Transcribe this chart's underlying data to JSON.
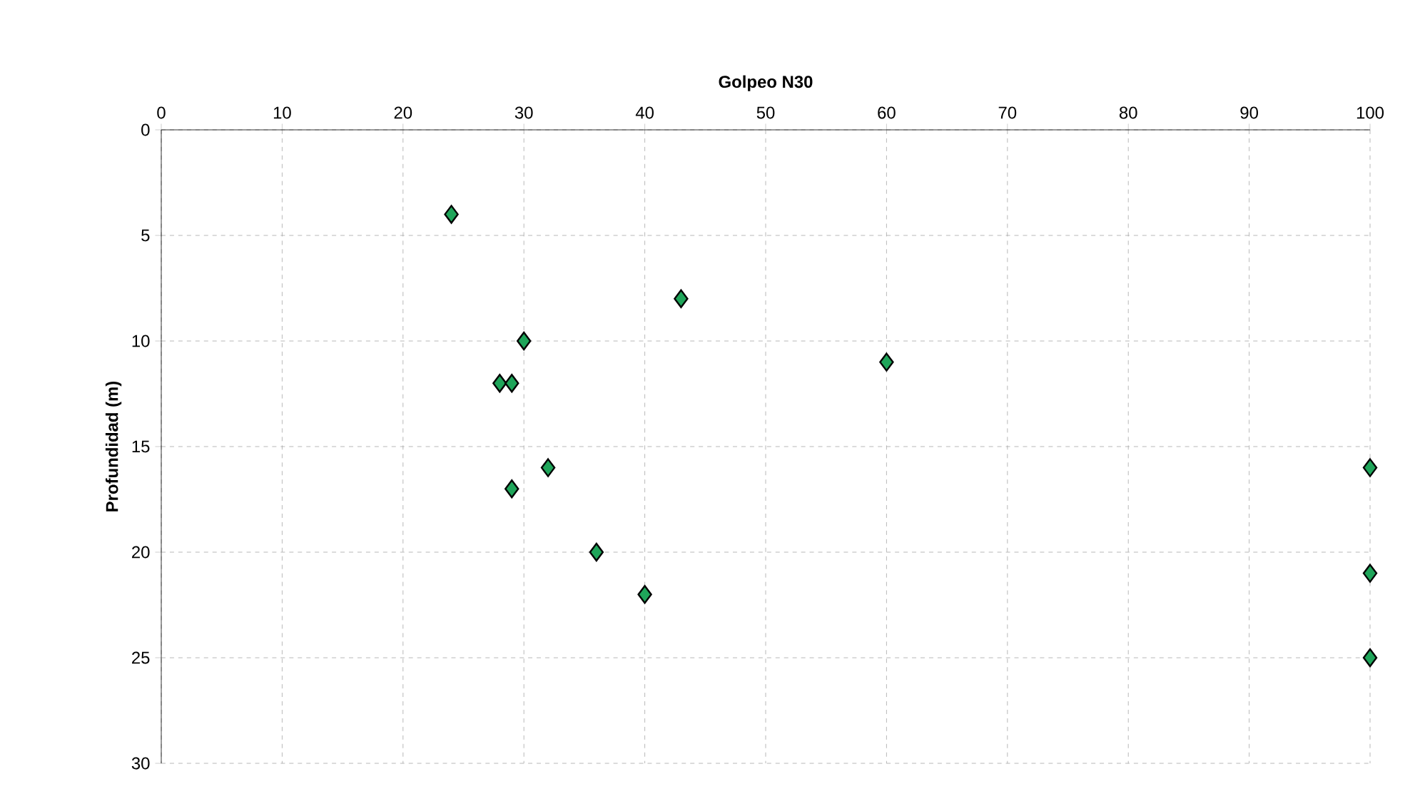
{
  "chart_data": {
    "type": "scatter",
    "xlabel": "Golpeo N30",
    "ylabel": "Profundidad (m)",
    "x": [
      24,
      43,
      30,
      60,
      28,
      29,
      32,
      29,
      36,
      40,
      100,
      100,
      100
    ],
    "values": [
      4,
      8,
      10,
      11,
      12,
      12,
      16,
      17,
      20,
      22,
      16,
      21,
      25
    ],
    "color": "#1fa55a",
    "marker": "diamond",
    "grid": true,
    "xlim": [
      0,
      100
    ],
    "xticks": [
      0,
      10,
      20,
      30,
      40,
      50,
      60,
      70,
      80,
      90,
      100
    ],
    "ylim": [
      30,
      0
    ],
    "yticks": [
      0,
      5,
      10,
      15,
      20,
      25,
      30
    ]
  }
}
